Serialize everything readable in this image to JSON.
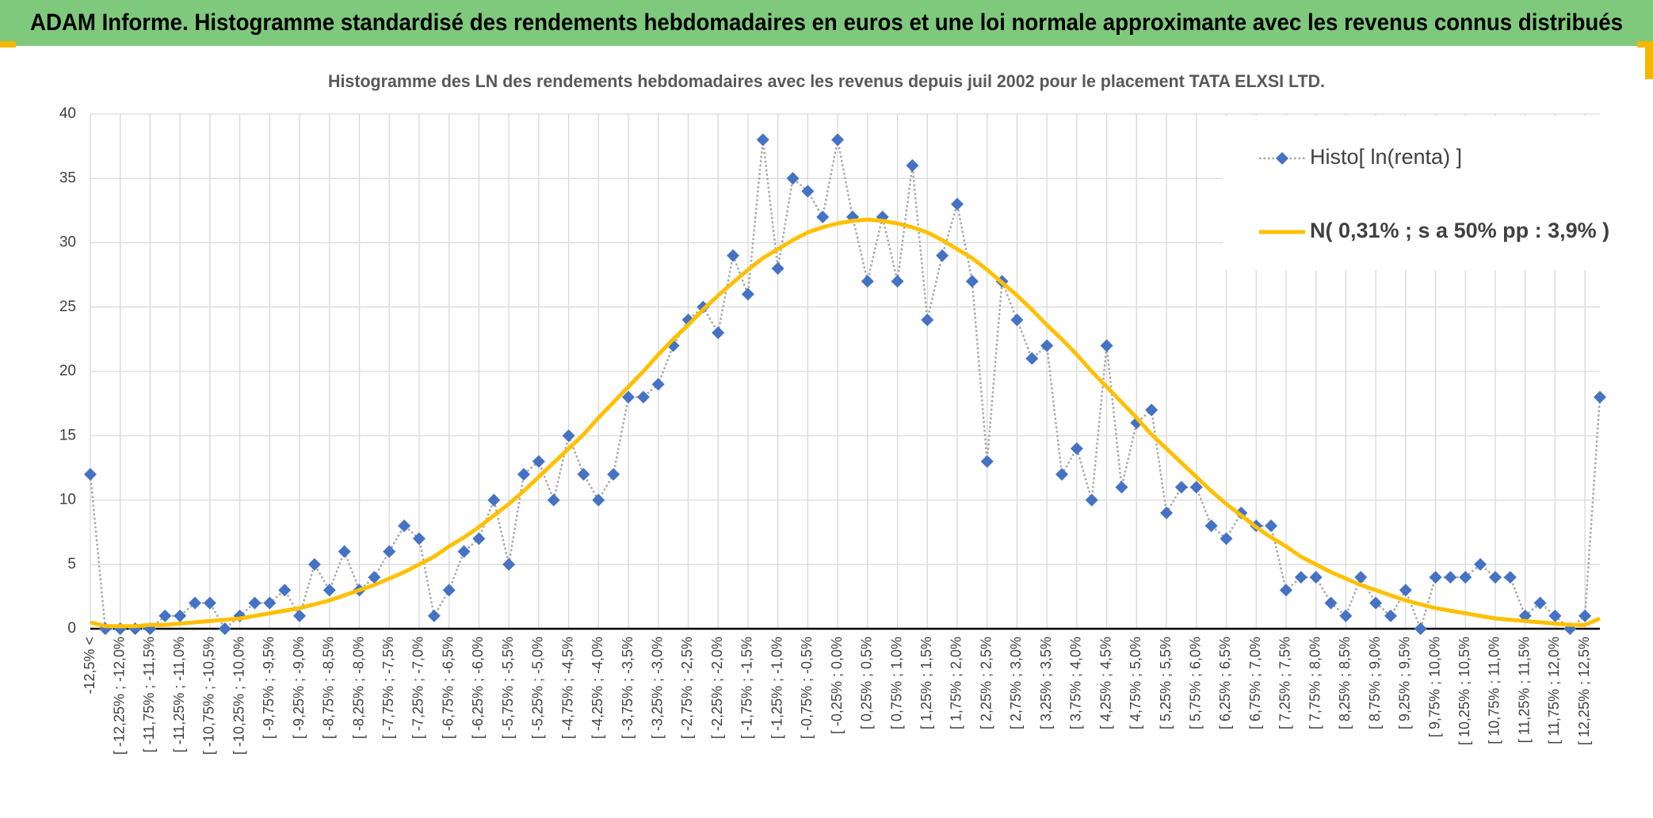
{
  "header": {
    "title": "ADAM Informe. Histogramme standardisé des rendements hebdomadaires en euros et une loi normale approximante avec les revenus connus distribués"
  },
  "chart_data": {
    "type": "line",
    "title": "Histogramme des LN des rendements hebdomadaires avec les revenus depuis juil 2002 pour le placement TATA ELXSI LTD.",
    "categories": [
      "-12,5% <",
      null,
      "[ -12,25% ; -12,0%",
      null,
      "[ -11,75% ; -11,5%",
      null,
      "[ -11,25% ; -11,0%",
      null,
      "[ -10,75% ; -10,5%",
      null,
      "[ -10,25% ; -10,0%",
      null,
      "[ -9,75% ; -9,5%",
      null,
      "[ -9,25% ; -9,0%",
      null,
      "[ -8,75% ; -8,5%",
      null,
      "[ -8,25% ; -8,0%",
      null,
      "[ -7,75% ; -7,5%",
      null,
      "[ -7,25% ; -7,0%",
      null,
      "[ -6,75% ; -6,5%",
      null,
      "[ -6,25% ; -6,0%",
      null,
      "[ -5,75% ; -5,5%",
      null,
      "[ -5,25% ; -5,0%",
      null,
      "[ -4,75% ; -4,5%",
      null,
      "[ -4,25% ; -4,0%",
      null,
      "[ -3,75% ; -3,5%",
      null,
      "[ -3,25% ; -3,0%",
      null,
      "[ -2,75% ; -2,5%",
      null,
      "[ -2,25% ; -2,0%",
      null,
      "[ -1,75% ; -1,5%",
      null,
      "[ -1,25% ; -1,0%",
      null,
      "[ -0,75% ; -0,5%",
      null,
      "[ -0,25% ; 0,0%",
      null,
      "[ 0,25% ; 0,5%",
      null,
      "[ 0,75% ; 1,0%",
      null,
      "[ 1,25% ; 1,5%",
      null,
      "[ 1,75% ; 2,0%",
      null,
      "[ 2,25% ; 2,5%",
      null,
      "[ 2,75% ; 3,0%",
      null,
      "[ 3,25% ; 3,5%",
      null,
      "[ 3,75% ; 4,0%",
      null,
      "[ 4,25% ; 4,5%",
      null,
      "[ 4,75% ; 5,0%",
      null,
      "[ 5,25% ; 5,5%",
      null,
      "[ 5,75% ; 6,0%",
      null,
      "[ 6,25% ; 6,5%",
      null,
      "[ 6,75% ; 7,0%",
      null,
      "[ 7,25% ; 7,5%",
      null,
      "[ 7,75% ; 8,0%",
      null,
      "[ 8,25% ; 8,5%",
      null,
      "[ 8,75% ; 9,0%",
      null,
      "[ 9,25% ; 9,5%",
      null,
      "[ 9,75% ; 10,0%",
      null,
      "[ 10,25% ; 10,5%",
      null,
      "[ 10,75% ; 11,0%",
      null,
      "[ 11,25% ; 11,5%",
      null,
      "[ 11,75% ; 12,0%",
      null,
      "[ 12,25% ; 12,5%",
      null
    ],
    "series": [
      {
        "name": "Histo[ ln(renta) ]",
        "color": "#4472c4",
        "line_color": "#a6a6a6",
        "line_style": "dotted",
        "marker": "diamond",
        "values": [
          12,
          0,
          0,
          0,
          0,
          1,
          1,
          2,
          2,
          0,
          1,
          2,
          2,
          3,
          1,
          5,
          3,
          6,
          3,
          4,
          6,
          8,
          7,
          1,
          3,
          6,
          7,
          10,
          5,
          12,
          13,
          10,
          15,
          12,
          10,
          12,
          18,
          18,
          19,
          22,
          24,
          25,
          23,
          29,
          26,
          38,
          28,
          35,
          34,
          32,
          38,
          32,
          27,
          32,
          27,
          36,
          24,
          29,
          33,
          27,
          13,
          27,
          24,
          21,
          22,
          12,
          14,
          10,
          22,
          11,
          16,
          17,
          9,
          11,
          11,
          8,
          7,
          9,
          8,
          8,
          3,
          4,
          4,
          2,
          1,
          4,
          2,
          1,
          3,
          0,
          4,
          4,
          4,
          5,
          4,
          4,
          1,
          2,
          1,
          0,
          1,
          18
        ]
      },
      {
        "name": "N( 0,31% ; s a 50% pp : 3,9% )",
        "color": "#ffc000",
        "line_color": "#ffc000",
        "line_style": "solid",
        "marker": "none",
        "values": [
          0.5,
          0.2,
          0.2,
          0.2,
          0.3,
          0.3,
          0.4,
          0.5,
          0.6,
          0.7,
          0.8,
          1.0,
          1.2,
          1.4,
          1.6,
          1.9,
          2.2,
          2.6,
          3.0,
          3.4,
          3.9,
          4.4,
          5.0,
          5.6,
          6.4,
          7.1,
          7.9,
          8.8,
          9.7,
          10.7,
          11.8,
          12.9,
          14.0,
          15.1,
          16.4,
          17.6,
          18.8,
          20.0,
          21.3,
          22.5,
          23.6,
          24.8,
          25.9,
          26.9,
          27.9,
          28.8,
          29.5,
          30.2,
          30.8,
          31.2,
          31.5,
          31.7,
          31.8,
          31.7,
          31.5,
          31.2,
          30.8,
          30.2,
          29.5,
          28.8,
          27.9,
          26.9,
          25.9,
          24.8,
          23.6,
          22.5,
          21.3,
          20.0,
          18.8,
          17.6,
          16.4,
          15.1,
          14.0,
          12.9,
          11.8,
          10.7,
          9.7,
          8.8,
          7.9,
          7.1,
          6.4,
          5.6,
          5.0,
          4.4,
          3.9,
          3.4,
          3.0,
          2.6,
          2.2,
          1.9,
          1.6,
          1.4,
          1.2,
          1.0,
          0.8,
          0.7,
          0.6,
          0.5,
          0.4,
          0.3,
          0.3,
          0.8
        ]
      }
    ],
    "ylim": [
      0,
      40
    ],
    "yticks": [
      0,
      5,
      10,
      15,
      20,
      25,
      30,
      35,
      40
    ],
    "grid": true,
    "legend": "top-right"
  }
}
